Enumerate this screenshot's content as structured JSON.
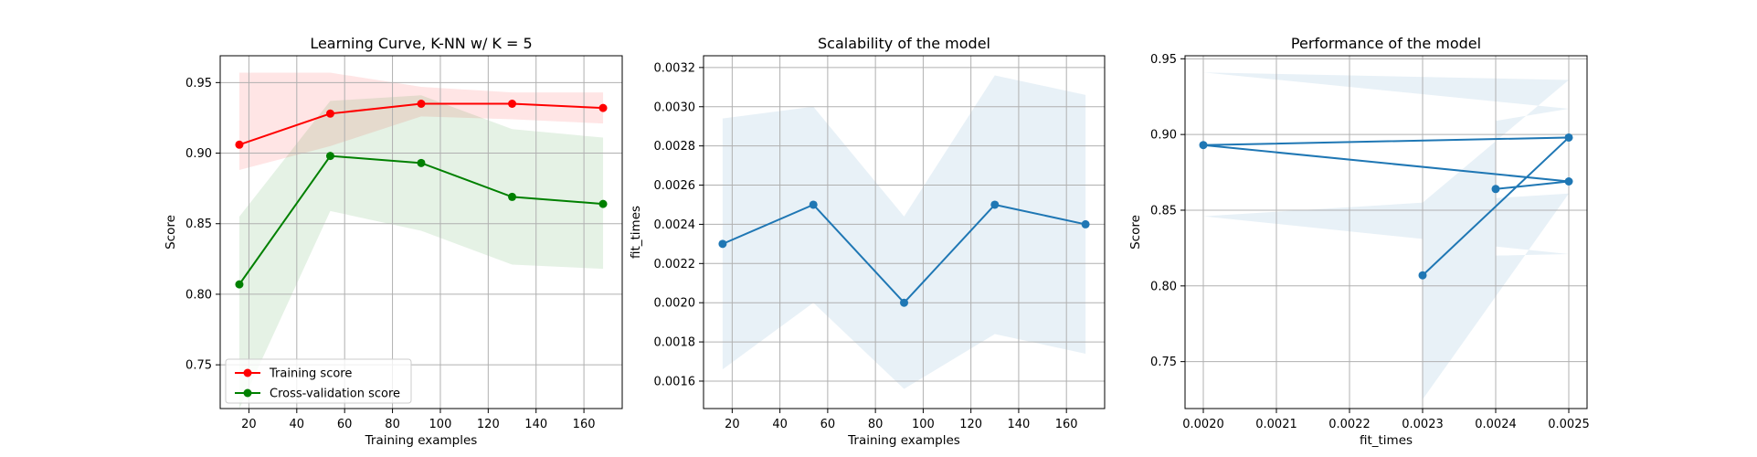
{
  "chart_data": [
    {
      "type": "line",
      "title": "Learning Curve, K-NN w/ K = 5",
      "xlabel": "Training examples",
      "ylabel": "Score",
      "xlim": [
        8,
        176
      ],
      "ylim": [
        0.719,
        0.969
      ],
      "xticks": [
        20,
        40,
        60,
        80,
        100,
        120,
        140,
        160
      ],
      "yticks": [
        0.75,
        0.8,
        0.85,
        0.9,
        0.95
      ],
      "ytick_labels": [
        "0.75",
        "0.80",
        "0.85",
        "0.90",
        "0.95"
      ],
      "grid": true,
      "legend": "lower-left",
      "x": [
        16,
        54,
        92,
        130,
        168
      ],
      "series": [
        {
          "name": "Training score",
          "color": "#ff0000",
          "values": [
            0.906,
            0.928,
            0.935,
            0.935,
            0.932
          ],
          "band_lower": [
            0.888,
            0.905,
            0.926,
            0.924,
            0.921
          ],
          "band_upper": [
            0.957,
            0.957,
            0.947,
            0.943,
            0.943
          ],
          "band_color": "#ff0000"
        },
        {
          "name": "Cross-validation score",
          "color": "#008000",
          "values": [
            0.807,
            0.898,
            0.893,
            0.869,
            0.864
          ],
          "band_lower": [
            0.719,
            0.859,
            0.845,
            0.821,
            0.818
          ],
          "band_upper": [
            0.855,
            0.937,
            0.941,
            0.917,
            0.911
          ],
          "band_color": "#008000"
        }
      ]
    },
    {
      "type": "line",
      "title": "Scalability of the model",
      "xlabel": "Training examples",
      "ylabel": "fit_times",
      "xlim": [
        8,
        176
      ],
      "ylim": [
        0.00146,
        0.00326
      ],
      "xticks": [
        20,
        40,
        60,
        80,
        100,
        120,
        140,
        160
      ],
      "yticks": [
        0.0016,
        0.0018,
        0.002,
        0.0022,
        0.0024,
        0.0026,
        0.0028,
        0.003,
        0.0032
      ],
      "ytick_labels": [
        "0.0016",
        "0.0018",
        "0.0020",
        "0.0022",
        "0.0024",
        "0.0026",
        "0.0028",
        "0.0030",
        "0.0032"
      ],
      "grid": true,
      "x": [
        16,
        54,
        92,
        130,
        168
      ],
      "series": [
        {
          "color": "#1f77b4",
          "values": [
            0.0023,
            0.0025,
            0.002,
            0.0025,
            0.0024
          ],
          "band_lower": [
            0.00166,
            0.002,
            0.00156,
            0.00184,
            0.00174
          ],
          "band_upper": [
            0.00294,
            0.003,
            0.00244,
            0.00316,
            0.00306
          ],
          "band_color": "#1f77b4"
        }
      ]
    },
    {
      "type": "line",
      "title": "Performance of the model",
      "xlabel": "fit_times",
      "ylabel": "Score",
      "xlim": [
        0.001975,
        0.002525
      ],
      "ylim": [
        0.719,
        0.952
      ],
      "xticks": [
        0.002,
        0.0021,
        0.0022,
        0.0023,
        0.0024,
        0.0025
      ],
      "xtick_labels": [
        "0.0020",
        "0.0021",
        "0.0022",
        "0.0023",
        "0.0024",
        "0.0025"
      ],
      "yticks": [
        0.75,
        0.8,
        0.85,
        0.9,
        0.95
      ],
      "ytick_labels": [
        "0.75",
        "0.80",
        "0.85",
        "0.90",
        "0.95"
      ],
      "grid": true,
      "x": [
        0.0023,
        0.0025,
        0.002,
        0.0025,
        0.0024
      ],
      "series": [
        {
          "color": "#1f77b4",
          "values": [
            0.807,
            0.898,
            0.893,
            0.869,
            0.864
          ],
          "band_lower": [
            0.725,
            0.861,
            0.846,
            0.821,
            0.82
          ],
          "band_upper": [
            0.855,
            0.936,
            0.941,
            0.917,
            0.909
          ],
          "band_color": "#1f77b4"
        }
      ]
    }
  ]
}
